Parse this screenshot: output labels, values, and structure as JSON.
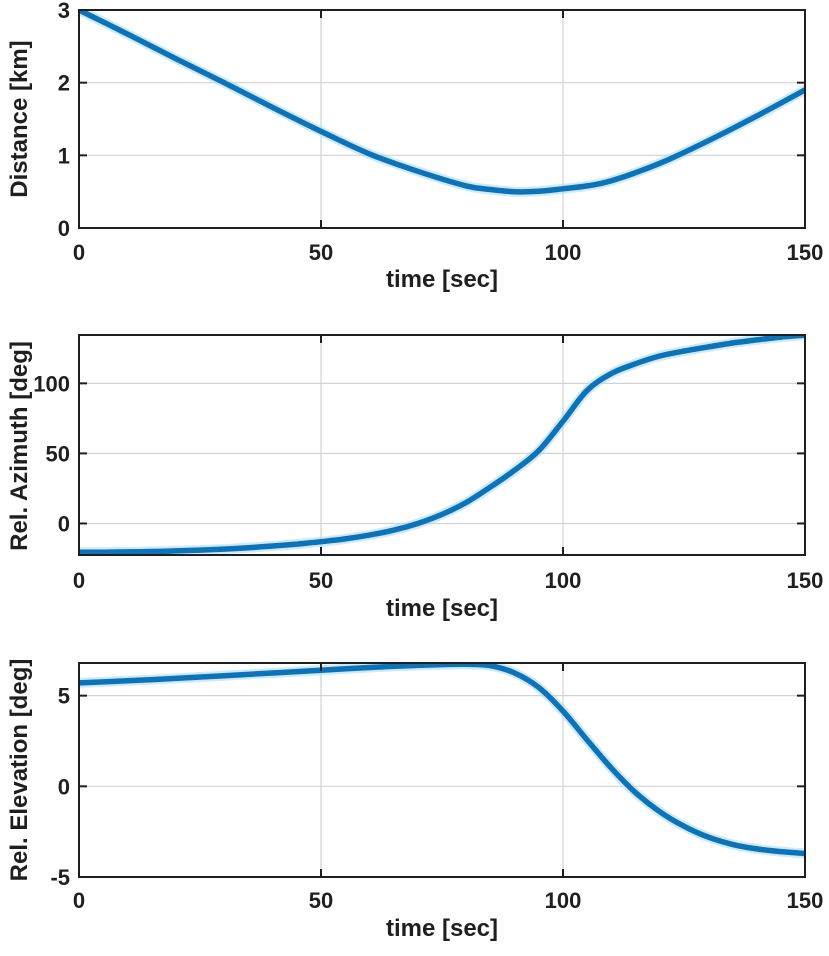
{
  "style": {
    "background": "#ffffff",
    "line_color": "#0d73b9",
    "halo_color": "#a8d9f1",
    "grid_color": "#d2d2d2",
    "axis_color": "#1f1f1f",
    "text_color": "#1f1f1f"
  },
  "chart_data": [
    {
      "id": "distance",
      "type": "line",
      "title": "",
      "xlabel": "time [sec]",
      "ylabel": "Distance [km]",
      "xlim": [
        0,
        150
      ],
      "ylim": [
        0,
        3
      ],
      "xticks": [
        0,
        50,
        100,
        150
      ],
      "yticks": [
        0,
        1,
        2,
        3
      ],
      "grid": true,
      "legend": null,
      "x": [
        0,
        10,
        20,
        30,
        40,
        50,
        60,
        70,
        80,
        85,
        90,
        95,
        100,
        105,
        110,
        120,
        130,
        140,
        150
      ],
      "y": [
        3.0,
        2.67,
        2.33,
        2.0,
        1.66,
        1.33,
        1.02,
        0.78,
        0.58,
        0.53,
        0.5,
        0.505,
        0.54,
        0.58,
        0.65,
        0.89,
        1.2,
        1.54,
        1.9
      ]
    },
    {
      "id": "rel-azimuth",
      "type": "line",
      "title": "",
      "xlabel": "time [sec]",
      "ylabel": "Rel. Azimuth [deg]",
      "xlim": [
        0,
        150
      ],
      "ylim": [
        -22.5,
        134.5
      ],
      "xticks": [
        0,
        50,
        100,
        150
      ],
      "yticks": [
        0,
        50,
        100
      ],
      "grid": true,
      "legend": null,
      "x": [
        0,
        5,
        10,
        15,
        20,
        25,
        30,
        35,
        40,
        45,
        50,
        55,
        60,
        65,
        70,
        75,
        80,
        85,
        90,
        95,
        100,
        105,
        110,
        115,
        120,
        125,
        130,
        135,
        140,
        145,
        150
      ],
      "y": [
        -20.6,
        -20.5,
        -20.3,
        -20.0,
        -19.6,
        -19.0,
        -18.3,
        -17.3,
        -16.1,
        -14.7,
        -13.0,
        -11.0,
        -8.3,
        -4.8,
        0.0,
        6.5,
        15,
        26,
        38,
        52,
        73,
        95,
        107,
        114,
        119.5,
        123,
        126,
        128.8,
        131,
        133,
        134.4
      ]
    },
    {
      "id": "rel-elevation",
      "type": "line",
      "title": "",
      "xlabel": "time [sec]",
      "ylabel": "Rel. Elevation [deg]",
      "xlim": [
        0,
        150
      ],
      "ylim": [
        -5,
        6.8
      ],
      "xticks": [
        0,
        50,
        100,
        150
      ],
      "yticks": [
        -5,
        0,
        5
      ],
      "grid": true,
      "legend": null,
      "x": [
        0,
        10,
        20,
        30,
        40,
        50,
        60,
        70,
        75,
        80,
        85,
        90,
        95,
        100,
        105,
        110,
        115,
        120,
        125,
        130,
        135,
        140,
        145,
        150
      ],
      "y": [
        5.7,
        5.82,
        5.95,
        6.1,
        6.25,
        6.4,
        6.55,
        6.67,
        6.71,
        6.73,
        6.65,
        6.25,
        5.45,
        4.15,
        2.55,
        1.0,
        -0.35,
        -1.4,
        -2.2,
        -2.8,
        -3.2,
        -3.45,
        -3.6,
        -3.7
      ]
    }
  ]
}
